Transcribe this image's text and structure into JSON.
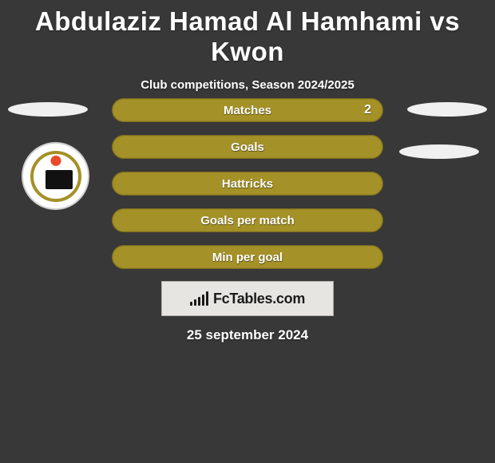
{
  "header": {
    "title": "Abdulaziz Hamad Al Hamhami vs Kwon",
    "subtitle": "Club competitions, Season 2024/2025"
  },
  "colors": {
    "bar_fill": "#a49127",
    "bar_border": "#7d6d1e",
    "value_fill": "#b8a330"
  },
  "stats": [
    {
      "label": "Matches",
      "value": "2",
      "has_value": true
    },
    {
      "label": "Goals",
      "value": "",
      "has_value": false
    },
    {
      "label": "Hattricks",
      "value": "",
      "has_value": false
    },
    {
      "label": "Goals per match",
      "value": "",
      "has_value": false
    },
    {
      "label": "Min per goal",
      "value": "",
      "has_value": false
    }
  ],
  "footer": {
    "logo_text": "FcTables.com",
    "date": "25 september 2024"
  },
  "logo_bars_heights": [
    5,
    8,
    11,
    14,
    18
  ]
}
